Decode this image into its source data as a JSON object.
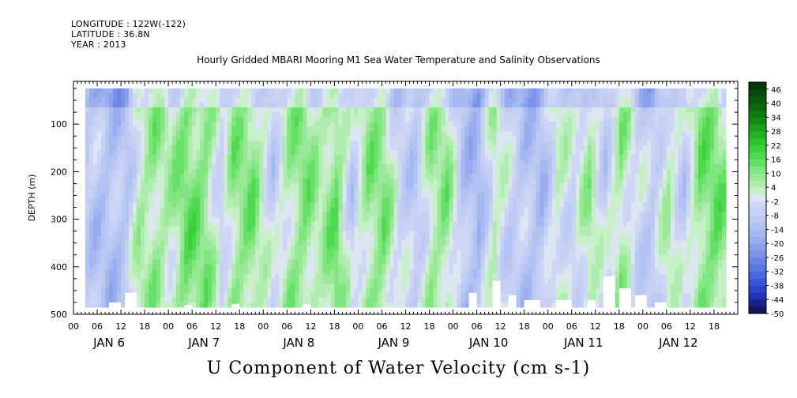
{
  "header": {
    "longitude": "LONGITUDE : 122W(-122)",
    "latitude": "LATITUDE : 36.8N",
    "year": "YEAR : 2013"
  },
  "chart_data": {
    "type": "heatmap",
    "title": "Hourly Gridded MBARI Mooring M1 Sea Water Temperature and Salinity Observations",
    "bottom_title": "U Component of Water Velocity (cm s-1)",
    "ylabel": "DEPTH (m)",
    "xlabel": "",
    "y_axis": {
      "range": [
        500,
        10
      ],
      "ticks": [
        100,
        200,
        300,
        400,
        500
      ],
      "inverted": true
    },
    "x_axis": {
      "range_hours": [
        0,
        168
      ],
      "hour_ticks": [
        "00",
        "06",
        "12",
        "18",
        "00",
        "06",
        "12",
        "18",
        "00",
        "06",
        "12",
        "18",
        "00",
        "06",
        "12",
        "18",
        "00",
        "06",
        "12",
        "18",
        "00",
        "06",
        "12",
        "18",
        "00",
        "06",
        "12",
        "18"
      ],
      "day_labels": [
        "JAN  6",
        "JAN  7",
        "JAN  8",
        "JAN  9",
        "JAN 10",
        "JAN 11",
        "JAN 12"
      ]
    },
    "colorbar": {
      "labels": [
        "46",
        "40",
        "34",
        "28",
        "22",
        "16",
        "10",
        "4",
        "-2",
        "-8",
        "-14",
        "-20",
        "-26",
        "-32",
        "-38",
        "-44",
        "-50"
      ],
      "levels": [
        -50,
        -47,
        -44,
        -41,
        -38,
        -35,
        -32,
        -29,
        -26,
        -23,
        -20,
        -17,
        -14,
        -11,
        -8,
        -5,
        -2,
        1,
        4,
        7,
        10,
        13,
        16,
        19,
        22,
        25,
        28,
        31,
        34,
        37,
        40,
        43,
        46,
        49
      ],
      "colors": [
        "#14145a",
        "#1a2288",
        "#2233b0",
        "#2e44c8",
        "#3b55d4",
        "#4a66dc",
        "#5a76e0",
        "#6a85e4",
        "#7a93e8",
        "#8aa0ea",
        "#98acee",
        "#a6b8f0",
        "#b2c2f2",
        "#bccaf2",
        "#c6d0f4",
        "#ced6f6",
        "#dce6f0",
        "#c8f0c8",
        "#b0ecb0",
        "#98e898",
        "#80e680",
        "#68e068",
        "#50d850",
        "#3cd03c",
        "#2cc42c",
        "#22b422",
        "#1aa01a",
        "#148c14",
        "#107a10",
        "#0c680c",
        "#0a580a",
        "#084808",
        "#063806"
      ]
    },
    "field_description": "U velocity (cm/s) vs time (Jan 6 00Z - Jan 12 ~21Z 2013) and depth (~25-485 m); alternating columns of weak westward (-2 to -14) and eastward (4 to 16) flow"
  }
}
